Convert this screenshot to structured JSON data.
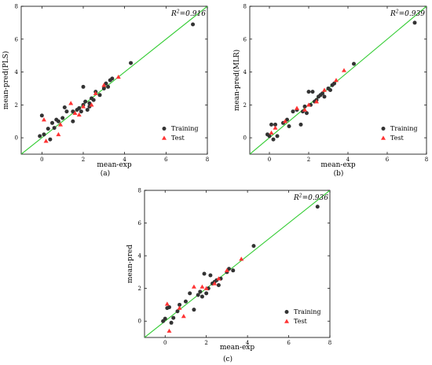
{
  "chart_data": [
    {
      "type": "scatter",
      "panel": "(a)",
      "title": "",
      "xlabel": "mean-exp",
      "ylabel": "mean-pred(PLS)",
      "r2_label": "R",
      "r2_sup": "2",
      "r2_value": "=0.916",
      "xlim": [
        -1,
        8
      ],
      "ylim": [
        -1,
        8
      ],
      "xticks": [
        0,
        2,
        4,
        6,
        8
      ],
      "yticks": [
        0,
        2,
        4,
        6,
        8
      ],
      "legend_position": "bottom-right",
      "fit_line_color": "#33cc33",
      "series": [
        {
          "name": "Training",
          "color": "#333333",
          "marker": "circle",
          "points": [
            [
              -0.1,
              0.1
            ],
            [
              0,
              1.35
            ],
            [
              0.1,
              0.2
            ],
            [
              0.3,
              0.55
            ],
            [
              0.4,
              -0.1
            ],
            [
              0.5,
              0.9
            ],
            [
              0.6,
              0.6
            ],
            [
              0.7,
              1.1
            ],
            [
              0.8,
              1.0
            ],
            [
              1.0,
              1.2
            ],
            [
              1.1,
              1.85
            ],
            [
              1.2,
              1.6
            ],
            [
              1.5,
              1.6
            ],
            [
              1.5,
              1.0
            ],
            [
              1.7,
              1.7
            ],
            [
              1.8,
              1.8
            ],
            [
              1.9,
              1.6
            ],
            [
              2.0,
              2.0
            ],
            [
              2.0,
              3.1
            ],
            [
              2.1,
              2.2
            ],
            [
              2.2,
              1.7
            ],
            [
              2.3,
              2.1
            ],
            [
              2.3,
              1.9
            ],
            [
              2.4,
              2.4
            ],
            [
              2.5,
              2.3
            ],
            [
              2.6,
              2.8
            ],
            [
              2.8,
              2.6
            ],
            [
              3.0,
              3.0
            ],
            [
              3.1,
              3.3
            ],
            [
              3.2,
              3.1
            ],
            [
              3.3,
              3.5
            ],
            [
              3.4,
              3.6
            ],
            [
              4.3,
              4.55
            ],
            [
              7.3,
              6.9
            ]
          ]
        },
        {
          "name": "Test",
          "color": "#ff3333",
          "marker": "triangle",
          "points": [
            [
              0.1,
              1.1
            ],
            [
              0.2,
              -0.2
            ],
            [
              0.8,
              0.2
            ],
            [
              0.9,
              0.8
            ],
            [
              1.4,
              2.1
            ],
            [
              1.6,
              1.5
            ],
            [
              1.8,
              1.4
            ],
            [
              2.0,
              1.9
            ],
            [
              2.4,
              2.0
            ],
            [
              2.6,
              2.7
            ],
            [
              3.0,
              3.2
            ],
            [
              3.7,
              3.7
            ]
          ]
        }
      ]
    },
    {
      "type": "scatter",
      "panel": "(b)",
      "title": "",
      "xlabel": "mean-exp",
      "ylabel": "mean-pred(MLR)",
      "r2_label": "R",
      "r2_sup": "2",
      "r2_value": "=0.939",
      "xlim": [
        -1,
        8
      ],
      "ylim": [
        -1,
        8
      ],
      "xticks": [
        0,
        2,
        4,
        6,
        8
      ],
      "yticks": [
        0,
        2,
        4,
        6,
        8
      ],
      "legend_position": "bottom-right",
      "fit_line_color": "#33cc33",
      "series": [
        {
          "name": "Training",
          "color": "#333333",
          "marker": "circle",
          "points": [
            [
              -0.1,
              0.2
            ],
            [
              0,
              0.1
            ],
            [
              0.1,
              0.8
            ],
            [
              0.2,
              -0.1
            ],
            [
              0.3,
              0.8
            ],
            [
              0.4,
              0.1
            ],
            [
              0.7,
              0.9
            ],
            [
              0.9,
              1.1
            ],
            [
              1.0,
              0.7
            ],
            [
              1.2,
              1.6
            ],
            [
              1.4,
              1.7
            ],
            [
              1.6,
              0.8
            ],
            [
              1.7,
              1.6
            ],
            [
              1.8,
              1.9
            ],
            [
              1.9,
              1.5
            ],
            [
              2.0,
              2.8
            ],
            [
              2.1,
              2.0
            ],
            [
              2.2,
              2.8
            ],
            [
              2.3,
              2.2
            ],
            [
              2.4,
              2.3
            ],
            [
              2.5,
              2.5
            ],
            [
              2.6,
              2.6
            ],
            [
              2.7,
              2.7
            ],
            [
              2.8,
              2.5
            ],
            [
              3.0,
              3.0
            ],
            [
              3.1,
              2.9
            ],
            [
              3.2,
              3.2
            ],
            [
              3.3,
              3.3
            ],
            [
              4.3,
              4.5
            ],
            [
              7.4,
              7.0
            ]
          ]
        },
        {
          "name": "Test",
          "color": "#ff3333",
          "marker": "triangle",
          "points": [
            [
              0.1,
              0.3
            ],
            [
              0.3,
              0.6
            ],
            [
              0.8,
              1.0
            ],
            [
              1.4,
              1.8
            ],
            [
              1.8,
              1.7
            ],
            [
              2.0,
              2.0
            ],
            [
              2.4,
              2.2
            ],
            [
              2.8,
              2.9
            ],
            [
              3.4,
              3.5
            ],
            [
              3.8,
              4.1
            ]
          ]
        }
      ]
    },
    {
      "type": "scatter",
      "panel": "(c)",
      "title": "",
      "xlabel": "mean-exp",
      "ylabel": "mean-pred",
      "r2_label": "R",
      "r2_sup": "2",
      "r2_value": "=0.936",
      "xlim": [
        -1,
        8
      ],
      "ylim": [
        -1,
        8
      ],
      "xticks": [
        0,
        2,
        4,
        6,
        8
      ],
      "yticks": [
        0,
        2,
        4,
        6,
        8
      ],
      "legend_position": "bottom-right",
      "fit_line_color": "#33cc33",
      "series": [
        {
          "name": "Training",
          "color": "#333333",
          "marker": "circle",
          "points": [
            [
              -0.1,
              0.0
            ],
            [
              0,
              0.15
            ],
            [
              0.1,
              0.8
            ],
            [
              0.2,
              0.85
            ],
            [
              0.3,
              -0.1
            ],
            [
              0.4,
              0.2
            ],
            [
              0.6,
              0.6
            ],
            [
              0.7,
              1.0
            ],
            [
              1.0,
              1.2
            ],
            [
              1.2,
              1.7
            ],
            [
              1.4,
              0.7
            ],
            [
              1.6,
              1.6
            ],
            [
              1.7,
              1.8
            ],
            [
              1.8,
              1.5
            ],
            [
              1.9,
              2.9
            ],
            [
              2.0,
              1.7
            ],
            [
              2.1,
              2.0
            ],
            [
              2.2,
              2.8
            ],
            [
              2.3,
              2.3
            ],
            [
              2.4,
              2.4
            ],
            [
              2.5,
              2.5
            ],
            [
              2.6,
              2.2
            ],
            [
              2.7,
              2.6
            ],
            [
              3.0,
              3.0
            ],
            [
              3.1,
              3.2
            ],
            [
              3.3,
              3.1
            ],
            [
              4.3,
              4.6
            ],
            [
              7.4,
              7.0
            ]
          ]
        },
        {
          "name": "Test",
          "color": "#ff3333",
          "marker": "triangle",
          "points": [
            [
              0.1,
              1.05
            ],
            [
              0.2,
              -0.6
            ],
            [
              0.7,
              0.8
            ],
            [
              0.9,
              0.3
            ],
            [
              1.4,
              2.1
            ],
            [
              1.8,
              2.1
            ],
            [
              2.0,
              2.0
            ],
            [
              2.4,
              2.3
            ],
            [
              2.6,
              2.6
            ],
            [
              3.0,
              3.1
            ],
            [
              3.7,
              3.8
            ]
          ]
        }
      ]
    }
  ]
}
